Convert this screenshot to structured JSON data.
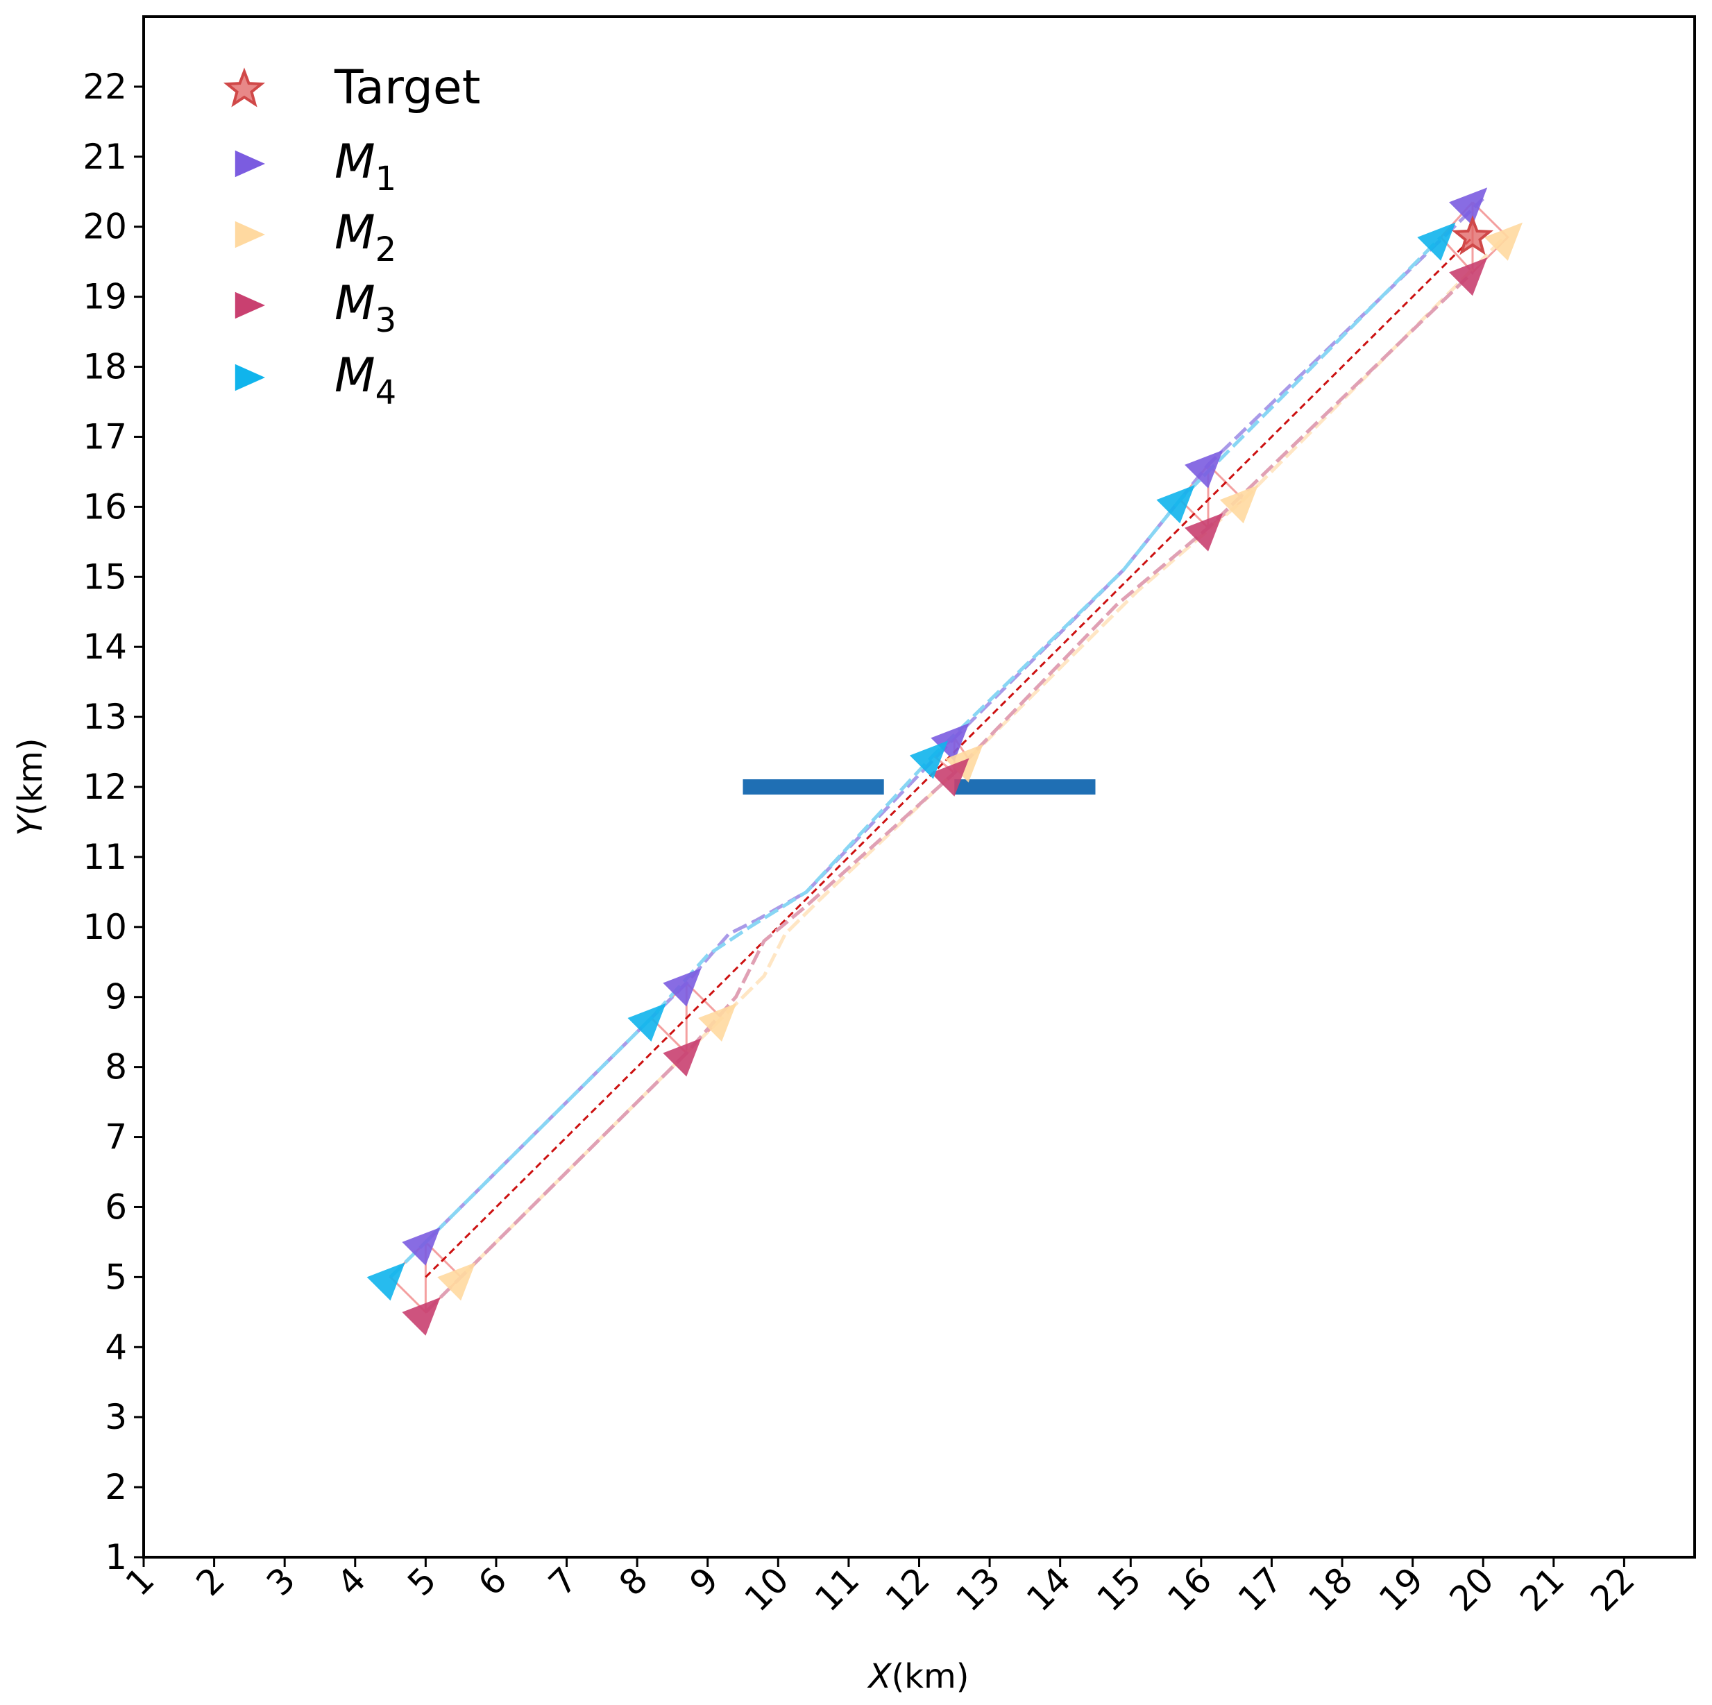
{
  "chart_data": {
    "type": "scatter",
    "xlabel": {
      "var": "X",
      "unit": "(km)"
    },
    "ylabel": {
      "var": "Y",
      "unit": "(km)"
    },
    "xlim": [
      1,
      23
    ],
    "ylim": [
      1,
      23
    ],
    "xticks": [
      1,
      2,
      3,
      4,
      5,
      6,
      7,
      8,
      9,
      10,
      11,
      12,
      13,
      14,
      15,
      16,
      17,
      18,
      19,
      20,
      21,
      22
    ],
    "yticks": [
      1,
      2,
      3,
      4,
      5,
      6,
      7,
      8,
      9,
      10,
      11,
      12,
      13,
      14,
      15,
      16,
      17,
      18,
      19,
      20,
      21,
      22
    ],
    "grid": false,
    "legend": {
      "placement": "top-left",
      "entries": [
        {
          "label": "Target",
          "marker": "star",
          "color": "#e06060"
        },
        {
          "base": "M",
          "sub": "1",
          "marker": "triangle-right",
          "color": "#7b5ce0"
        },
        {
          "base": "M",
          "sub": "2",
          "marker": "triangle-right",
          "color": "#ffd9a0"
        },
        {
          "base": "M",
          "sub": "3",
          "marker": "triangle-right",
          "color": "#c94070"
        },
        {
          "base": "M",
          "sub": "4",
          "marker": "triangle-right",
          "color": "#10b4ec"
        }
      ]
    },
    "target": {
      "x": 19.85,
      "y": 19.85,
      "color": "#e06060"
    },
    "reference_line": {
      "points": [
        [
          5,
          5
        ],
        [
          19.85,
          19.85
        ]
      ],
      "color": "#cc1111"
    },
    "obstacles": [
      {
        "x": [
          9.5,
          11.5
        ],
        "y": 12,
        "color": "#1f6fb4"
      },
      {
        "x": [
          12.5,
          14.5
        ],
        "y": 12,
        "color": "#1f6fb4"
      }
    ],
    "series": [
      {
        "name": "M1",
        "color": "#7b5ce0",
        "line_color": "#a99ae8",
        "path": [
          [
            5,
            5.5
          ],
          [
            8.7,
            9.2
          ],
          [
            9.3,
            9.9
          ],
          [
            9.7,
            10.1
          ],
          [
            10.4,
            10.5
          ],
          [
            12.5,
            12.7
          ],
          [
            14.9,
            15.1
          ],
          [
            16.1,
            16.6
          ],
          [
            20,
            20.4
          ]
        ],
        "markers": [
          [
            5,
            5.5
          ],
          [
            8.7,
            9.2
          ],
          [
            12.5,
            12.7
          ],
          [
            16.1,
            16.6
          ],
          [
            19.85,
            20.35
          ]
        ],
        "headings": [
          45,
          45,
          45,
          45,
          45
        ]
      },
      {
        "name": "M2",
        "color": "#ffd9a0",
        "line_color": "#ffe6c4",
        "path": [
          [
            5.5,
            5
          ],
          [
            9.2,
            8.7
          ],
          [
            9.8,
            9.3
          ],
          [
            10.1,
            9.9
          ],
          [
            10.6,
            10.4
          ],
          [
            12.7,
            12.4
          ],
          [
            15.1,
            14.8
          ],
          [
            16.6,
            16.1
          ],
          [
            20.3,
            19.85
          ]
        ],
        "markers": [
          [
            5.5,
            5
          ],
          [
            9.2,
            8.7
          ],
          [
            12.7,
            12.4
          ],
          [
            16.6,
            16.1
          ],
          [
            20.35,
            19.85
          ]
        ],
        "headings": [
          45,
          45,
          45,
          45,
          45
        ]
      },
      {
        "name": "M3",
        "color": "#c94070",
        "line_color": "#e0a0b4",
        "path": [
          [
            5,
            4.5
          ],
          [
            8.7,
            8.2
          ],
          [
            9.4,
            9
          ],
          [
            9.8,
            9.8
          ],
          [
            10.4,
            10.3
          ],
          [
            12.5,
            12.2
          ],
          [
            14.8,
            14.6
          ],
          [
            16.1,
            15.7
          ],
          [
            19.85,
            19.35
          ]
        ],
        "markers": [
          [
            5,
            4.5
          ],
          [
            8.7,
            8.2
          ],
          [
            12.5,
            12.2
          ],
          [
            16.1,
            15.7
          ],
          [
            19.85,
            19.35
          ]
        ],
        "headings": [
          45,
          45,
          45,
          45,
          45
        ]
      },
      {
        "name": "M4",
        "color": "#10b4ec",
        "line_color": "#88d6f4",
        "path": [
          [
            4.5,
            5
          ],
          [
            8.2,
            8.7
          ],
          [
            9,
            9.6
          ],
          [
            9.6,
            10
          ],
          [
            10.4,
            10.5
          ],
          [
            12.2,
            12.45
          ],
          [
            14.9,
            15.1
          ],
          [
            15.7,
            16.1
          ],
          [
            19.4,
            19.85
          ]
        ],
        "markers": [
          [
            4.5,
            5
          ],
          [
            8.2,
            8.7
          ],
          [
            12.2,
            12.45
          ],
          [
            15.7,
            16.1
          ],
          [
            19.4,
            19.85
          ]
        ],
        "headings": [
          45,
          45,
          45,
          45,
          45
        ]
      }
    ]
  }
}
